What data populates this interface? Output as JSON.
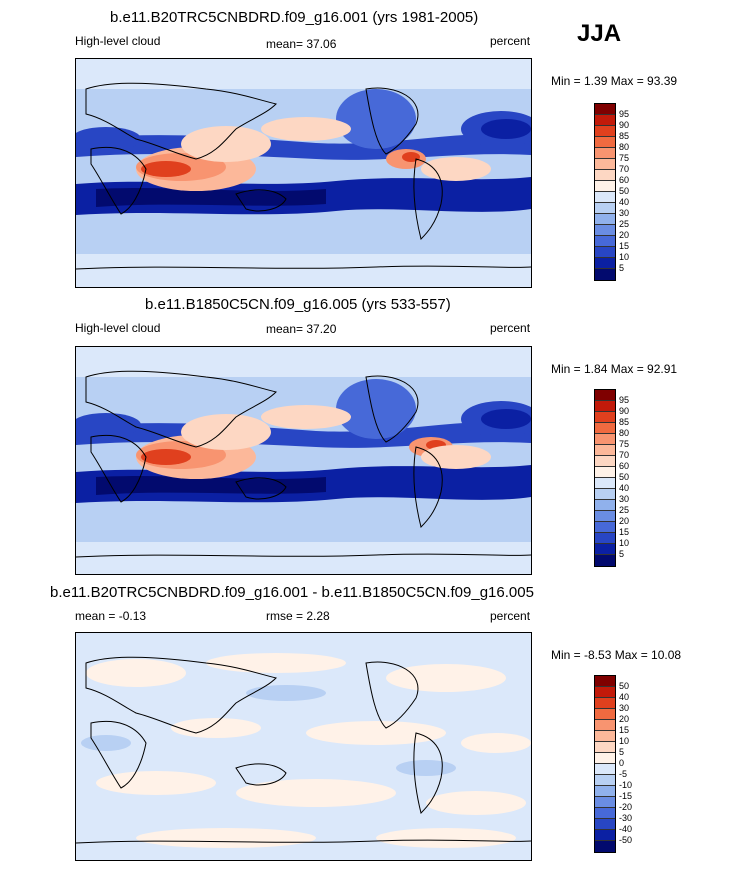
{
  "season": "JJA",
  "panels": [
    {
      "title": "b.e11.B20TRC5CNBDRD.f09_g16.001 (yrs 1981-2005)",
      "left_label": "High-level cloud",
      "mid_label": "mean=  37.06",
      "right_label": "percent",
      "minmax": "Min =   1.39 Max =  93.39",
      "cbar_labels": [
        "95",
        "90",
        "85",
        "80",
        "75",
        "70",
        "60",
        "50",
        "40",
        "30",
        "25",
        "20",
        "15",
        "10",
        "5"
      ]
    },
    {
      "title": "b.e11.B1850C5CN.f09_g16.005 (yrs 533-557)",
      "left_label": "High-level cloud",
      "mid_label": "mean=  37.20",
      "right_label": "percent",
      "minmax": "Min =   1.84 Max =  92.91",
      "cbar_labels": [
        "95",
        "90",
        "85",
        "80",
        "75",
        "70",
        "60",
        "50",
        "40",
        "30",
        "25",
        "20",
        "15",
        "10",
        "5"
      ]
    },
    {
      "title": "b.e11.B20TRC5CNBDRD.f09_g16.001 - b.e11.B1850C5CN.f09_g16.005",
      "left_label": "mean =  -0.13",
      "mid_label": "rmse =   2.28",
      "right_label": "percent",
      "minmax": "Min =  -8.53 Max =  10.08",
      "cbar_labels": [
        "50",
        "40",
        "30",
        "20",
        "15",
        "10",
        "5",
        "0",
        "-5",
        "-10",
        "-15",
        "-20",
        "-30",
        "-40",
        "-50"
      ]
    }
  ],
  "colors": {
    "cmap": [
      "#7f0000",
      "#c21a0a",
      "#e0401e",
      "#f06a40",
      "#f89470",
      "#fcb89a",
      "#fdd7c3",
      "#fff2e8",
      "#dbe8fa",
      "#b8d0f3",
      "#90b1ec",
      "#6a8de3",
      "#4769d8",
      "#2846c4",
      "#0b20a3",
      "#020a6e"
    ]
  },
  "chart_data": [
    {
      "type": "heatmap",
      "title": "b.e11.B20TRC5CNBDRD.f09_g16.001 (yrs 1981-2005)",
      "variable": "High-level cloud",
      "units": "percent",
      "mean": 37.06,
      "min": 1.39,
      "max": 93.39,
      "levels": [
        5,
        10,
        15,
        20,
        25,
        30,
        40,
        50,
        60,
        70,
        75,
        80,
        85,
        90,
        95
      ]
    },
    {
      "type": "heatmap",
      "title": "b.e11.B1850C5CN.f09_g16.005 (yrs 533-557)",
      "variable": "High-level cloud",
      "units": "percent",
      "mean": 37.2,
      "min": 1.84,
      "max": 92.91,
      "levels": [
        5,
        10,
        15,
        20,
        25,
        30,
        40,
        50,
        60,
        70,
        75,
        80,
        85,
        90,
        95
      ]
    },
    {
      "type": "heatmap",
      "title": "b.e11.B20TRC5CNBDRD.f09_g16.001 - b.e11.B1850C5CN.f09_g16.005",
      "units": "percent",
      "mean": -0.13,
      "rmse": 2.28,
      "min": -8.53,
      "max": 10.08,
      "levels": [
        -50,
        -40,
        -30,
        -20,
        -15,
        -10,
        -5,
        0,
        5,
        10,
        15,
        20,
        30,
        40,
        50
      ]
    }
  ]
}
